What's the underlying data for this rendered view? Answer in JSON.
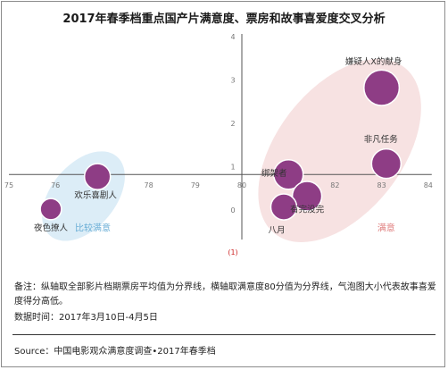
{
  "title": "2017年春季档重点国产片满意度、票房和故事喜爱度交叉分析",
  "note": "备注：纵轴取全部影片档期票房平均值为分界线，横轴取满意度80分值为分界线，气泡图大小代表故事喜爱度得分高低。",
  "period": "数据时间：2017年3月10日-4月5日",
  "source": "Source：中国电影观众满意度调查•2017年春季档",
  "chart_data": {
    "type": "scatter",
    "title": "2017年春季档重点国产片满意度、票房和故事喜爱度交叉分析",
    "x_ticks": [
      "75",
      "76",
      "77",
      "78",
      "79",
      "80",
      "81",
      "82",
      "83",
      "84"
    ],
    "y_ticks": [
      "(1)",
      "0",
      "1",
      "2",
      "3",
      "4"
    ],
    "xlim": [
      75,
      84
    ],
    "ylim": [
      -1,
      4
    ],
    "x_axis_crosses_y": 0.8,
    "y_axis_crosses_x": 80,
    "grid": false,
    "bubble_color": "#8e3d85",
    "zones": [
      {
        "label": "比较满意",
        "color": "#dcedf7",
        "label_color": "#6aaed6"
      },
      {
        "label": "满意",
        "color": "#f7e2e2",
        "label_color": "#e08080"
      }
    ],
    "points": [
      {
        "name": "嫌疑人X的献身",
        "x": 83.0,
        "y": 2.8,
        "size": 3
      },
      {
        "name": "非凡任务",
        "x": 83.1,
        "y": 1.05,
        "size": 2.5
      },
      {
        "name": "绑架者",
        "x": 81.0,
        "y": 0.8,
        "size": 2.5
      },
      {
        "name": "有完没完",
        "x": 81.4,
        "y": 0.3,
        "size": 2.5
      },
      {
        "name": "八月",
        "x": 80.9,
        "y": 0.05,
        "size": 2.2
      },
      {
        "name": "欢乐喜剧人",
        "x": 76.9,
        "y": 0.75,
        "size": 2.2
      },
      {
        "name": "夜色撩人",
        "x": 75.9,
        "y": 0.0,
        "size": 1.8
      }
    ]
  }
}
